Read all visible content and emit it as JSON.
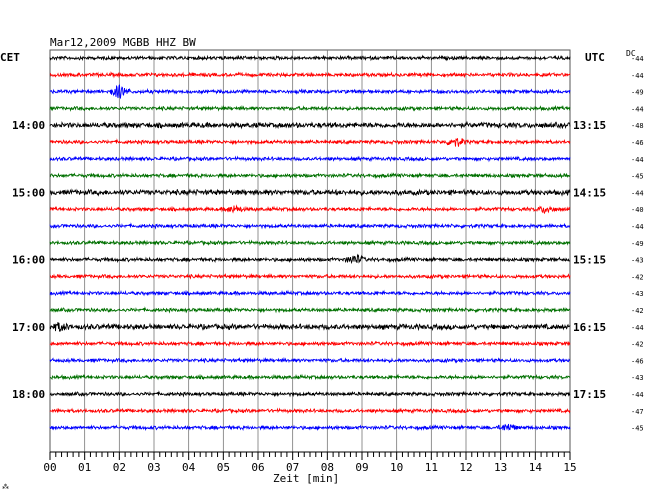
{
  "chart_data": {
    "type": "line",
    "title": "Mar12,2009   MGBB HHZ BW",
    "xlabel": "Zeit [min]",
    "left_axis_label": "CET",
    "right_axis_label": "UTC",
    "dc_label": "DC",
    "x_ticks": [
      "00",
      "01",
      "02",
      "03",
      "04",
      "05",
      "06",
      "07",
      "08",
      "09",
      "10",
      "11",
      "12",
      "13",
      "14",
      "15"
    ],
    "xlim": [
      0,
      15
    ],
    "row_colors": [
      "#000000",
      "#ff0000",
      "#0000ff",
      "#007000"
    ],
    "grid": true,
    "left_hour_labels": [
      {
        "row": 4,
        "label": "14:00"
      },
      {
        "row": 8,
        "label": "15:00"
      },
      {
        "row": 12,
        "label": "16:00"
      },
      {
        "row": 16,
        "label": "17:00"
      },
      {
        "row": 20,
        "label": "18:00"
      }
    ],
    "right_hour_labels": [
      {
        "row": 4,
        "label": "13:15"
      },
      {
        "row": 8,
        "label": "14:15"
      },
      {
        "row": 12,
        "label": "15:15"
      },
      {
        "row": 16,
        "label": "16:15"
      },
      {
        "row": 20,
        "label": "17:15"
      }
    ],
    "dc_offsets": [
      "-44",
      "-44",
      "-49",
      "-44",
      "-48",
      "-46",
      "-44",
      "-45",
      "-44",
      "-40",
      "-44",
      "-49",
      "-43",
      "-42",
      "-43",
      "-42",
      "-44",
      "-42",
      "-46",
      "-43",
      "-44",
      "-47",
      "-45"
    ],
    "row_amplitudes": [
      2,
      2,
      2,
      2,
      3,
      2,
      2,
      2,
      3,
      2,
      2,
      2,
      2,
      2,
      2,
      2,
      3,
      2,
      2,
      2,
      2,
      2,
      2
    ],
    "events": [
      {
        "row": 2,
        "minute": 2.0,
        "amplitude": 6
      },
      {
        "row": 12,
        "minute": 8.8,
        "amplitude": 4
      },
      {
        "row": 5,
        "minute": 11.7,
        "amplitude": 4
      },
      {
        "row": 9,
        "minute": 14.3,
        "amplitude": 3
      },
      {
        "row": 9,
        "minute": 5.3,
        "amplitude": 3
      },
      {
        "row": 22,
        "minute": 13.2,
        "amplitude": 3
      },
      {
        "row": 16,
        "minute": 0.3,
        "amplitude": 3
      }
    ]
  },
  "footer_mark": "⁂"
}
